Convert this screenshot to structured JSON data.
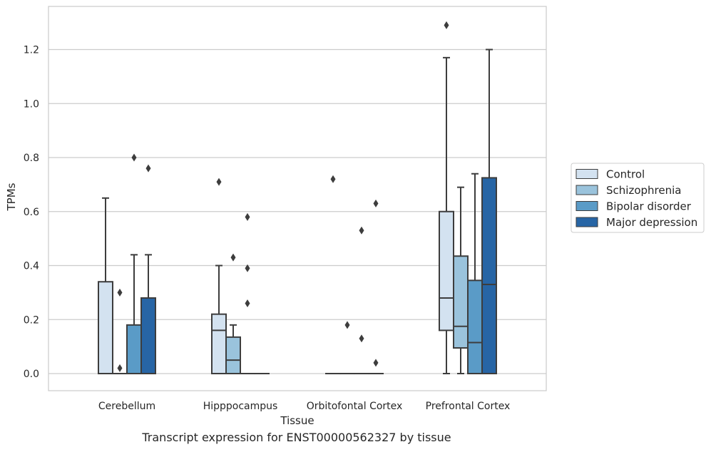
{
  "caption": "Transcript expression for ENST00000562327 by tissue",
  "chart_data": {
    "type": "box",
    "xlabel": "Tissue",
    "ylabel": "TPMs",
    "ylim": [
      -0.065,
      1.36
    ],
    "yticks": [
      0.0,
      0.2,
      0.4,
      0.6,
      0.8,
      1.0,
      1.2
    ],
    "ytick_labels": [
      "0.0",
      "0.2",
      "0.4",
      "0.6",
      "0.8",
      "1.0",
      "1.2"
    ],
    "grid": "horizontal",
    "legend_position": "right",
    "categories": [
      "Cerebellum",
      "Hipppocampus",
      "Orbitofontal Cortex",
      "Prefrontal Cortex"
    ],
    "series": [
      {
        "name": "Control",
        "color": "#d3e2f0",
        "boxes": [
          {
            "q1": 0.0,
            "median": 0.0,
            "q3": 0.34,
            "whislo": 0.0,
            "whishi": 0.65,
            "fliers": []
          },
          {
            "q1": 0.0,
            "median": 0.16,
            "q3": 0.22,
            "whislo": 0.0,
            "whishi": 0.4,
            "fliers": [
              0.71
            ]
          },
          {
            "q1": 0.0,
            "median": 0.0,
            "q3": 0.0,
            "whislo": 0.0,
            "whishi": 0.0,
            "fliers": [
              0.72
            ]
          },
          {
            "q1": 0.16,
            "median": 0.28,
            "q3": 0.6,
            "whislo": 0.0,
            "whishi": 1.17,
            "fliers": [
              1.29
            ]
          }
        ]
      },
      {
        "name": "Schizophrenia",
        "color": "#9ac3dc",
        "boxes": [
          {
            "q1": 0.0,
            "median": 0.0,
            "q3": 0.0,
            "whislo": 0.0,
            "whishi": 0.0,
            "fliers": [
              0.3,
              0.02
            ]
          },
          {
            "q1": 0.0,
            "median": 0.05,
            "q3": 0.135,
            "whislo": 0.0,
            "whishi": 0.18,
            "fliers": [
              0.43
            ]
          },
          {
            "q1": 0.0,
            "median": 0.0,
            "q3": 0.0,
            "whislo": 0.0,
            "whishi": 0.0,
            "fliers": [
              0.18
            ]
          },
          {
            "q1": 0.095,
            "median": 0.175,
            "q3": 0.435,
            "whislo": 0.0,
            "whishi": 0.69,
            "fliers": []
          }
        ]
      },
      {
        "name": "Bipolar disorder",
        "color": "#5a9bc7",
        "boxes": [
          {
            "q1": 0.0,
            "median": 0.0,
            "q3": 0.18,
            "whislo": 0.0,
            "whishi": 0.44,
            "fliers": [
              0.8
            ]
          },
          {
            "q1": 0.0,
            "median": 0.0,
            "q3": 0.0,
            "whislo": 0.0,
            "whishi": 0.0,
            "fliers": [
              0.58,
              0.39,
              0.26
            ]
          },
          {
            "q1": 0.0,
            "median": 0.0,
            "q3": 0.0,
            "whislo": 0.0,
            "whishi": 0.0,
            "fliers": [
              0.53,
              0.13
            ]
          },
          {
            "q1": 0.0,
            "median": 0.115,
            "q3": 0.345,
            "whislo": 0.0,
            "whishi": 0.74,
            "fliers": []
          }
        ]
      },
      {
        "name": "Major depression",
        "color": "#2765a5",
        "boxes": [
          {
            "q1": 0.0,
            "median": 0.0,
            "q3": 0.28,
            "whislo": 0.0,
            "whishi": 0.44,
            "fliers": [
              0.76
            ]
          },
          {
            "q1": 0.0,
            "median": 0.0,
            "q3": 0.0,
            "whislo": 0.0,
            "whishi": 0.0,
            "fliers": []
          },
          {
            "q1": 0.0,
            "median": 0.0,
            "q3": 0.0,
            "whislo": 0.0,
            "whishi": 0.0,
            "fliers": [
              0.63,
              0.04
            ]
          },
          {
            "q1": 0.0,
            "median": 0.33,
            "q3": 0.725,
            "whislo": 0.0,
            "whishi": 1.2,
            "fliers": []
          }
        ]
      }
    ]
  }
}
